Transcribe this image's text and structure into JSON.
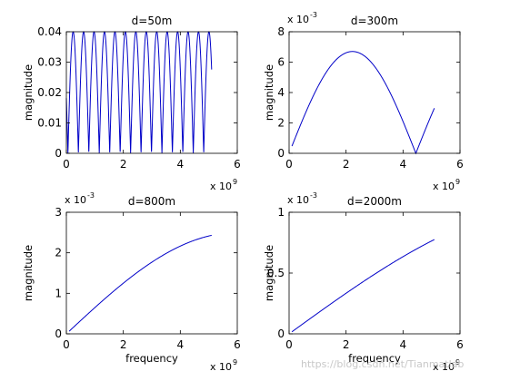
{
  "watermark": "https://blog.csdn.net/Tianmatlab",
  "colors": {
    "series": "#0000c8",
    "axes": "#000000",
    "background": "#ffffff"
  },
  "chart_data": [
    {
      "type": "line",
      "title": "d=50m",
      "xlabel": "",
      "ylabel": "magnitude",
      "xlim": [
        0,
        6
      ],
      "ylim": [
        0,
        0.04
      ],
      "xticks": [
        "0",
        "2",
        "4",
        "6"
      ],
      "yticks": [
        "0",
        "0.01",
        "0.02",
        "0.03",
        "0.04"
      ],
      "xtick_values": [
        0,
        2,
        4,
        6
      ],
      "ytick_values": [
        0,
        0.01,
        0.02,
        0.03,
        0.04
      ],
      "x_multiplier": {
        "base": "x 10",
        "exp": "9"
      },
      "y_multiplier": null,
      "series": [
        {
          "generator": "abs_sin",
          "amp": 0.04,
          "period": 0.3667,
          "phase": 0.055,
          "xmin": 0.0,
          "xmax": 5.1,
          "samples": 1400
        }
      ]
    },
    {
      "type": "line",
      "title": "d=300m",
      "xlabel": "",
      "ylabel": "magnitude",
      "xlim": [
        0,
        6
      ],
      "ylim": [
        0,
        0.008
      ],
      "xticks": [
        "0",
        "2",
        "4",
        "6"
      ],
      "yticks": [
        "0",
        "2",
        "4",
        "6",
        "8"
      ],
      "xtick_values": [
        0,
        2,
        4,
        6
      ],
      "ytick_values": [
        0,
        0.002,
        0.004,
        0.006,
        0.008
      ],
      "x_multiplier": {
        "base": "x 10",
        "exp": "9"
      },
      "y_multiplier": {
        "base": "x 10",
        "exp": "-3"
      },
      "series": [
        {
          "generator": "abs_sin",
          "amp": 0.0067,
          "period": 4.45,
          "phase": 0.0,
          "xmin": 0.1,
          "xmax": 5.1,
          "samples": 600
        }
      ]
    },
    {
      "type": "line",
      "title": "d=800m",
      "xlabel": "frequency",
      "ylabel": "magnitude",
      "xlim": [
        0,
        6
      ],
      "ylim": [
        0,
        0.003
      ],
      "xticks": [
        "0",
        "2",
        "4",
        "6"
      ],
      "yticks": [
        "0",
        "1",
        "2",
        "3"
      ],
      "xtick_values": [
        0,
        2,
        4,
        6
      ],
      "ytick_values": [
        0,
        0.001,
        0.002,
        0.003
      ],
      "x_multiplier": {
        "base": "x 10",
        "exp": "9"
      },
      "y_multiplier": {
        "base": "x 10",
        "exp": "-3"
      },
      "series": [
        {
          "generator": "abs_sin",
          "amp": 0.0025,
          "period": 12.0,
          "phase": 0.0,
          "xmin": 0.1,
          "xmax": 5.1,
          "samples": 400
        }
      ]
    },
    {
      "type": "line",
      "title": "d=2000m",
      "xlabel": "frequency",
      "ylabel": "magnitude",
      "xlim": [
        0,
        6
      ],
      "ylim": [
        0,
        0.001
      ],
      "xticks": [
        "0",
        "2",
        "4",
        "6"
      ],
      "yticks": [
        "0",
        "0.5",
        "1"
      ],
      "xtick_values": [
        0,
        2,
        4,
        6
      ],
      "ytick_values": [
        0,
        0.0005,
        0.001
      ],
      "x_multiplier": {
        "base": "x 10",
        "exp": "9"
      },
      "y_multiplier": {
        "base": "x 10",
        "exp": "-3"
      },
      "series": [
        {
          "generator": "abs_sin",
          "amp": 0.00108,
          "period": 20.0,
          "phase": 0.0,
          "xmin": 0.1,
          "xmax": 5.1,
          "samples": 400
        }
      ]
    }
  ]
}
